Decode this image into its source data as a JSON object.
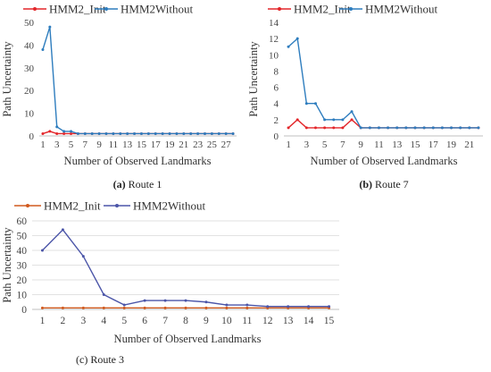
{
  "chart_data": [
    {
      "type": "line",
      "caption_label": "(a)",
      "caption_text": " Route 1",
      "xlabel": "Number of Observed Landmarks",
      "ylabel": "Path Uncertainty",
      "ylim": [
        0,
        50
      ],
      "yticks": [
        0,
        10,
        20,
        30,
        40,
        50
      ],
      "x": [
        1,
        2,
        3,
        4,
        5,
        6,
        7,
        8,
        9,
        10,
        11,
        12,
        13,
        14,
        15,
        16,
        17,
        18,
        19,
        20,
        21,
        22,
        23,
        24,
        25,
        26,
        27,
        28
      ],
      "xtick_labels": [
        "1",
        "3",
        "5",
        "7",
        "9",
        "11",
        "13",
        "15",
        "17",
        "19",
        "21",
        "23",
        "25",
        "27"
      ],
      "grid": false,
      "legend_position": "top",
      "series": [
        {
          "name": "HMM2_Init",
          "color": "#e3262a",
          "values": [
            1,
            2,
            1,
            1,
            1,
            1,
            1,
            1,
            1,
            1,
            1,
            1,
            1,
            1,
            1,
            1,
            1,
            1,
            1,
            1,
            1,
            1,
            1,
            1,
            1,
            1,
            1,
            1
          ]
        },
        {
          "name": "HMM2Without",
          "color": "#2e7dbe",
          "values": [
            38,
            48,
            4,
            2,
            2,
            1,
            1,
            1,
            1,
            1,
            1,
            1,
            1,
            1,
            1,
            1,
            1,
            1,
            1,
            1,
            1,
            1,
            1,
            1,
            1,
            1,
            1,
            1
          ]
        }
      ]
    },
    {
      "type": "line",
      "caption_label": "(b)",
      "caption_text": " Route 7",
      "xlabel": "Number of Observed Landmarks",
      "ylabel": "Path Uncertainty",
      "ylim": [
        0,
        14
      ],
      "yticks": [
        0,
        2,
        4,
        6,
        8,
        10,
        12,
        14
      ],
      "x": [
        1,
        2,
        3,
        4,
        5,
        6,
        7,
        8,
        9,
        10,
        11,
        12,
        13,
        14,
        15,
        16,
        17,
        18,
        19,
        20,
        21,
        22
      ],
      "xtick_labels": [
        "1",
        "3",
        "5",
        "7",
        "9",
        "11",
        "13",
        "15",
        "17",
        "19",
        "21"
      ],
      "grid": false,
      "legend_position": "top",
      "series": [
        {
          "name": "HMM2_Init",
          "color": "#e3262a",
          "values": [
            1,
            2,
            1,
            1,
            1,
            1,
            1,
            2,
            1,
            1,
            1,
            1,
            1,
            1,
            1,
            1,
            1,
            1,
            1,
            1,
            1,
            1
          ]
        },
        {
          "name": "HMM2Without",
          "color": "#2e7dbe",
          "values": [
            11,
            12,
            4,
            4,
            2,
            2,
            2,
            3,
            1,
            1,
            1,
            1,
            1,
            1,
            1,
            1,
            1,
            1,
            1,
            1,
            1,
            1
          ]
        }
      ]
    },
    {
      "type": "line",
      "caption_label": "",
      "caption_text": "(c) Route 3",
      "xlabel": "Number of Observed Landmarks",
      "ylabel": "Path Uncertainty",
      "ylim": [
        0,
        60
      ],
      "yticks": [
        0,
        10,
        20,
        30,
        40,
        50,
        60
      ],
      "x": [
        1,
        2,
        3,
        4,
        5,
        6,
        7,
        8,
        9,
        10,
        11,
        12,
        13,
        14,
        15
      ],
      "xtick_labels": [
        "1",
        "2",
        "3",
        "4",
        "5",
        "6",
        "7",
        "8",
        "9",
        "10",
        "11",
        "12",
        "13",
        "14",
        "15"
      ],
      "grid": true,
      "legend_position": "top",
      "series": [
        {
          "name": "HMM2_Init",
          "color": "#d15a1e",
          "values": [
            1,
            1,
            1,
            1,
            1,
            1,
            1,
            1,
            1,
            1,
            1,
            1,
            1,
            1,
            1
          ]
        },
        {
          "name": "HMM2Without",
          "color": "#4b55a8",
          "values": [
            40,
            54,
            36,
            10,
            3,
            6,
            6,
            6,
            5,
            3,
            3,
            2,
            2,
            2,
            2
          ]
        }
      ]
    }
  ]
}
